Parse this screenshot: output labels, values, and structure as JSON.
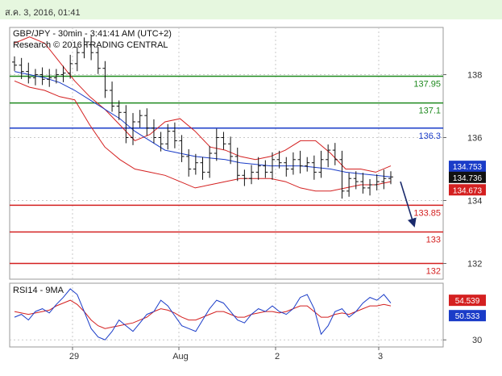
{
  "header": {
    "date_text": "ส.ค. 3, 2016, 01:41"
  },
  "chart_data": {
    "type": "candlestick",
    "title": "GBP/JPY - 30min - 3:41:41 AM (UTC+2)",
    "subtitle": "Research © 2016 TRADING CENTRAL",
    "price_axis": {
      "ticks": [
        132,
        134,
        136,
        138
      ],
      "ylim": [
        131.5,
        139.5
      ]
    },
    "x_ticks": [
      "29",
      "Aug",
      "2",
      "3"
    ],
    "levels": [
      {
        "value": 137.95,
        "label": "137.95",
        "color": "#1f8a1f"
      },
      {
        "value": 137.1,
        "label": "137.1",
        "color": "#1f8a1f"
      },
      {
        "value": 136.3,
        "label": "136.3",
        "color": "#1a3cc8"
      },
      {
        "value": 133.85,
        "label": "133.85",
        "color": "#d42020"
      },
      {
        "value": 133,
        "label": "133",
        "color": "#d42020"
      },
      {
        "value": 132,
        "label": "132",
        "color": "#d42020"
      }
    ],
    "price_labels": [
      {
        "value": 134.753,
        "label": "134.753",
        "color": "#1a3cc8"
      },
      {
        "value": 134.736,
        "label": "134.736",
        "color": "#111111"
      },
      {
        "value": 134.673,
        "label": "134.673",
        "color": "#d42020"
      }
    ],
    "close_series": [
      138.3,
      138.1,
      137.9,
      138.0,
      137.85,
      137.9,
      138.0,
      138.05,
      138.35,
      138.7,
      138.95,
      138.7,
      138.2,
      137.5,
      137.0,
      136.8,
      136.0,
      136.5,
      136.7,
      136.3,
      136.0,
      135.8,
      136.2,
      135.9,
      135.4,
      135.0,
      135.2,
      134.9,
      135.5,
      136.0,
      135.8,
      135.4,
      134.8,
      134.7,
      134.9,
      135.1,
      134.9,
      135.3,
      135.2,
      135.0,
      135.3,
      135.1,
      135.2,
      134.9,
      135.3,
      135.6,
      135.3,
      134.3,
      134.7,
      134.6,
      134.4,
      134.5,
      134.6,
      134.7,
      134.75
    ],
    "moving_average_blue": [
      138.1,
      138.0,
      137.9,
      137.75,
      137.5,
      137.2,
      136.9,
      136.6,
      136.2,
      135.9,
      135.6,
      135.5,
      135.4,
      135.35,
      135.3,
      135.2,
      135.15,
      135.1,
      135.1,
      135.1,
      135.05,
      135.0,
      134.9,
      134.85,
      134.8,
      134.75
    ],
    "band_upper": [
      139.0,
      139.2,
      139.0,
      138.4,
      137.8,
      137.3,
      136.9,
      136.4,
      135.9,
      136.1,
      136.5,
      136.6,
      136.2,
      135.7,
      135.6,
      135.4,
      135.3,
      135.4,
      135.6,
      135.9,
      135.9,
      135.5,
      135.0,
      135.0,
      134.9,
      135.1
    ],
    "band_lower": [
      137.8,
      137.6,
      137.5,
      137.3,
      137.2,
      136.4,
      135.7,
      135.3,
      135.0,
      134.9,
      134.8,
      134.6,
      134.4,
      134.5,
      134.6,
      134.7,
      134.7,
      134.7,
      134.6,
      134.4,
      134.3,
      134.3,
      134.4,
      134.5,
      134.5,
      134.6
    ],
    "rsi": {
      "label": "RSI14 - 9MA",
      "ticks": [
        30
      ],
      "ylim": [
        25,
        70
      ],
      "rsi_value": 54.539,
      "ma_value": 50.533,
      "rsi_values": [
        46,
        48,
        44,
        50,
        52,
        49,
        55,
        60,
        66,
        62,
        50,
        38,
        32,
        30,
        36,
        44,
        40,
        36,
        42,
        48,
        50,
        58,
        54,
        47,
        40,
        38,
        36,
        44,
        52,
        58,
        56,
        50,
        44,
        42,
        48,
        52,
        50,
        54,
        50,
        48,
        52,
        60,
        62,
        52,
        34,
        40,
        50,
        52,
        46,
        50,
        56,
        60,
        58,
        62,
        56
      ],
      "ma_values": [
        50,
        49,
        48,
        49,
        50,
        51,
        54,
        56,
        58,
        55,
        50,
        44,
        40,
        38,
        39,
        40,
        41,
        42,
        44,
        46,
        50,
        52,
        51,
        49,
        46,
        44,
        44,
        46,
        48,
        50,
        50,
        48,
        46,
        46,
        48,
        49,
        50,
        50,
        49,
        50,
        52,
        54,
        54,
        50,
        46,
        46,
        48,
        49,
        48,
        50,
        52,
        54,
        54,
        55,
        54
      ]
    },
    "projection_arrow": {
      "from": 134.6,
      "to": 133.2
    }
  }
}
